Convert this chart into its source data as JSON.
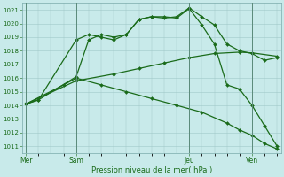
{
  "bg_color": "#c8eaea",
  "grid_color": "#a0c8c8",
  "line_color": "#1a6b1a",
  "xlabel": "Pression niveau de la mer( hPa )",
  "ylim": [
    1010.5,
    1021.5
  ],
  "yticks": [
    1011,
    1012,
    1013,
    1014,
    1015,
    1016,
    1017,
    1018,
    1019,
    1020,
    1021
  ],
  "xlim": [
    -0.3,
    20.3
  ],
  "day_labels": [
    "Mer",
    "Sam",
    "Jeu",
    "Ven"
  ],
  "day_positions": [
    0,
    4,
    13,
    18
  ],
  "vline_positions": [
    0,
    4,
    13,
    18
  ],
  "series1": {
    "x": [
      0,
      1,
      4,
      5,
      6,
      7,
      8,
      9,
      10,
      11,
      12,
      13,
      14,
      15,
      16,
      17,
      18,
      19,
      20
    ],
    "y": [
      1014.1,
      1014.4,
      1018.8,
      1019.2,
      1019.0,
      1018.8,
      1019.2,
      1020.3,
      1020.5,
      1020.4,
      1020.5,
      1021.15,
      1020.5,
      1019.9,
      1018.5,
      1018.0,
      1017.8,
      1017.3,
      1017.5
    ]
  },
  "series2": {
    "x": [
      0,
      1,
      4,
      5,
      6,
      7,
      8,
      9,
      10,
      11,
      12,
      13,
      14,
      15,
      16,
      17,
      18,
      19,
      20
    ],
    "y": [
      1014.1,
      1014.4,
      1016.1,
      1018.8,
      1019.2,
      1019.0,
      1019.2,
      1020.3,
      1020.5,
      1020.5,
      1020.4,
      1021.1,
      1019.9,
      1018.5,
      1015.5,
      1015.2,
      1014.0,
      1012.5,
      1011.0
    ]
  },
  "series3": {
    "x": [
      0,
      4,
      7,
      9,
      11,
      13,
      15,
      17,
      18,
      20
    ],
    "y": [
      1014.1,
      1015.8,
      1016.3,
      1016.7,
      1017.1,
      1017.5,
      1017.8,
      1017.9,
      1017.85,
      1017.6
    ]
  },
  "series4": {
    "x": [
      0,
      3,
      4,
      6,
      8,
      10,
      12,
      14,
      16,
      17,
      18,
      19,
      20
    ],
    "y": [
      1014.1,
      1015.5,
      1016.0,
      1015.5,
      1015.0,
      1014.5,
      1014.0,
      1013.5,
      1012.7,
      1012.2,
      1011.8,
      1011.2,
      1010.8
    ]
  }
}
